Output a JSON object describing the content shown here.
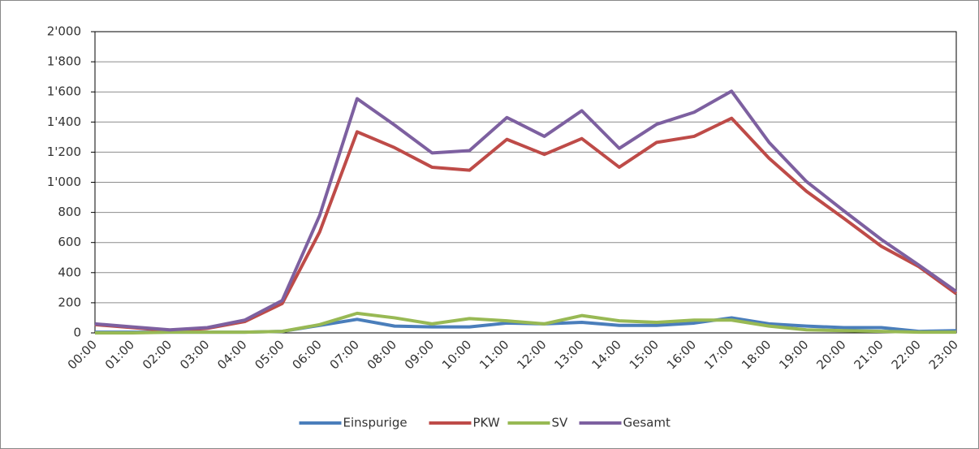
{
  "chart_data": {
    "type": "line",
    "categories": [
      "00:00",
      "01:00",
      "02:00",
      "03:00",
      "04:00",
      "05:00",
      "06:00",
      "07:00",
      "08:00",
      "09:00",
      "10:00",
      "11:00",
      "12:00",
      "13:00",
      "14:00",
      "15:00",
      "16:00",
      "17:00",
      "18:00",
      "19:00",
      "20:00",
      "21:00",
      "22:00",
      "23:00"
    ],
    "series": [
      {
        "name": "Einspurige",
        "color": "#4a7ebb",
        "values": [
          5,
          5,
          5,
          5,
          5,
          10,
          50,
          90,
          45,
          40,
          40,
          65,
          60,
          70,
          50,
          50,
          65,
          100,
          60,
          45,
          35,
          35,
          10,
          15
        ]
      },
      {
        "name": "PKW",
        "color": "#be4b48",
        "values": [
          55,
          35,
          15,
          30,
          75,
          195,
          670,
          1335,
          1230,
          1100,
          1080,
          1285,
          1185,
          1290,
          1100,
          1265,
          1305,
          1425,
          1160,
          940,
          760,
          575,
          440,
          260
        ]
      },
      {
        "name": "SV",
        "color": "#98b954",
        "values": [
          0,
          0,
          5,
          5,
          5,
          10,
          55,
          130,
          100,
          60,
          95,
          80,
          60,
          115,
          80,
          70,
          85,
          85,
          45,
          20,
          15,
          10,
          5,
          5
        ]
      },
      {
        "name": "Gesamt",
        "color": "#7d60a0",
        "values": [
          60,
          40,
          20,
          35,
          85,
          215,
          780,
          1555,
          1380,
          1195,
          1210,
          1430,
          1305,
          1475,
          1225,
          1385,
          1465,
          1605,
          1265,
          1005,
          810,
          620,
          450,
          275
        ]
      }
    ],
    "ylim": [
      0,
      2000
    ],
    "yticks": [
      0,
      200,
      400,
      600,
      800,
      {
        "value": 1000,
        "label": "1'000"
      },
      {
        "value": 1200,
        "label": "1'200"
      },
      {
        "value": 1400,
        "label": "1'400"
      },
      {
        "value": 1600,
        "label": "1'600"
      },
      {
        "value": 1800,
        "label": "1'800"
      },
      {
        "value": 2000,
        "label": "2'000"
      }
    ],
    "grid": true,
    "legend": "bottom"
  }
}
